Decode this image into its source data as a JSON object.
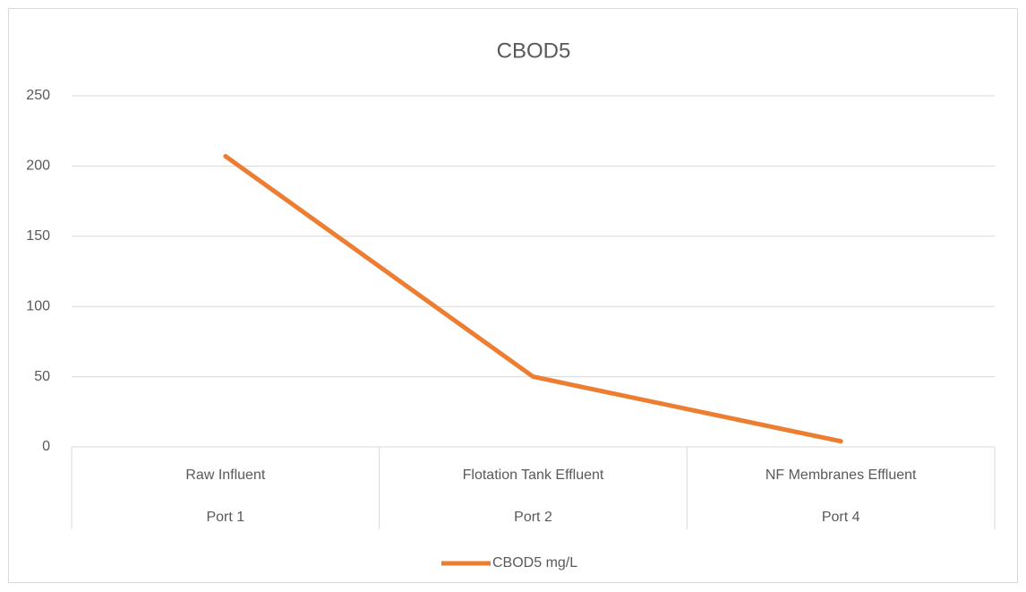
{
  "chart_data": {
    "type": "line",
    "title": "CBOD5",
    "categories": [
      "Raw Influent",
      "Flotation Tank Effluent",
      "NF Membranes Effluent"
    ],
    "category_ports": [
      "Port 1",
      "Port 2",
      "Port 4"
    ],
    "series": [
      {
        "name": "CBOD5 mg/L",
        "color": "#ed7d31",
        "values": [
          207,
          50,
          4
        ]
      }
    ],
    "ylim": [
      0,
      250
    ],
    "yticks": [
      0,
      50,
      100,
      150,
      200,
      250
    ],
    "grid": true,
    "legend": "bottom"
  }
}
